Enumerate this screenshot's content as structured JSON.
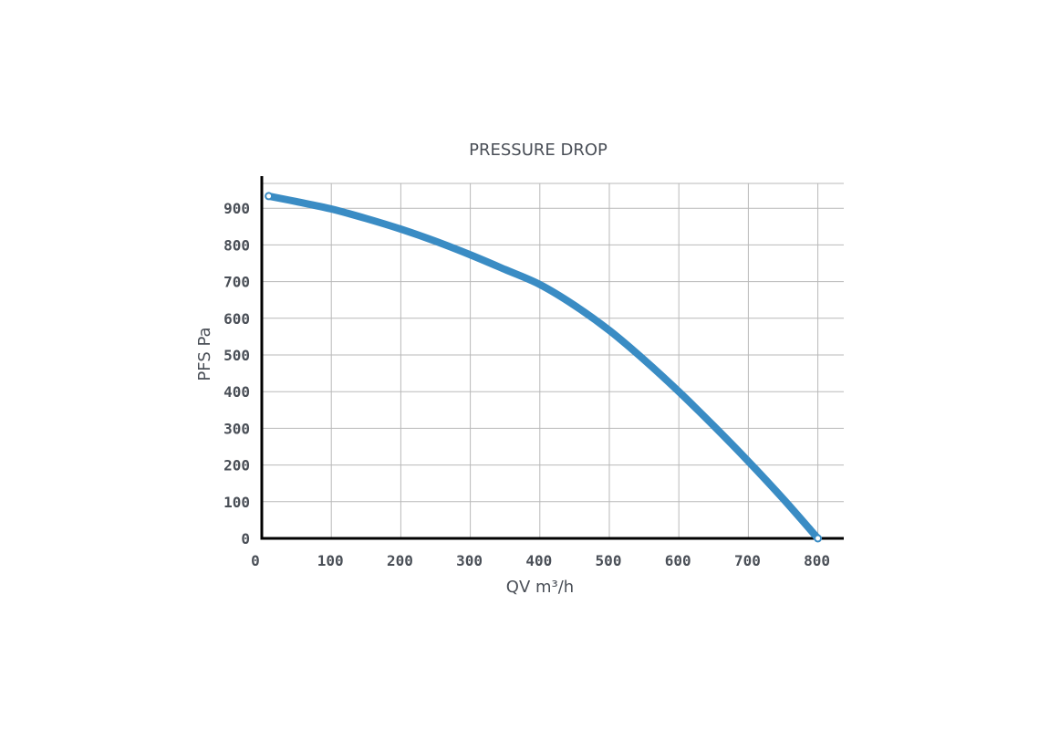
{
  "chart_data": {
    "type": "line",
    "title": "PRESSURE DROP",
    "xlabel": "QV m³/h",
    "ylabel": "PFS Pa",
    "xlim": [
      0,
      830
    ],
    "ylim": [
      0,
      965
    ],
    "x_ticks": [
      0,
      100,
      200,
      300,
      400,
      500,
      600,
      700,
      800
    ],
    "y_ticks": [
      0,
      100,
      200,
      300,
      400,
      500,
      600,
      700,
      800,
      900
    ],
    "grid": true,
    "series": [
      {
        "color": "#3a8cc4",
        "x": [
          10,
          50,
          100,
          150,
          200,
          250,
          300,
          350,
          400,
          450,
          500,
          550,
          600,
          650,
          700,
          750,
          800
        ],
        "y": [
          933,
          918,
          898,
          872,
          843,
          810,
          773,
          733,
          692,
          635,
          567,
          487,
          400,
          307,
          210,
          108,
          0
        ]
      }
    ],
    "endpoint_markers": true
  }
}
